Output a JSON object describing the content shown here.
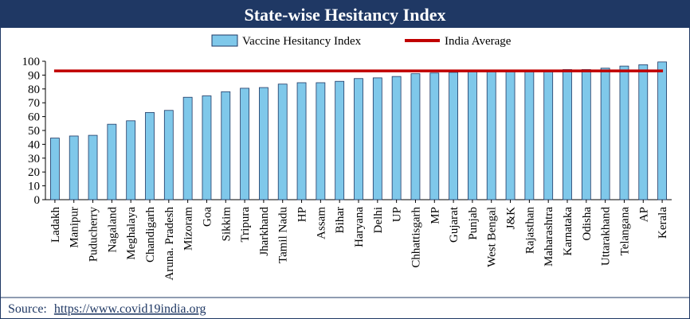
{
  "colors": {
    "bar": "#7fc8ea",
    "bar_outline": "#1f3864",
    "average_line": "#c00000",
    "title_background": "#1f3864",
    "source_text": "#1f3864"
  },
  "source": {
    "label": "Source:",
    "url": "https://www.covid19india.org"
  },
  "chart_data": {
    "type": "bar",
    "title": "State-wise Hesitancy Index",
    "xlabel": "",
    "ylabel": "",
    "ylim": [
      0,
      100
    ],
    "yticks": [
      0,
      10,
      20,
      30,
      40,
      50,
      60,
      70,
      80,
      90,
      100
    ],
    "grid": false,
    "legend_position": "top",
    "categories": [
      "Ladakh",
      "Manipur",
      "Puducherry",
      "Nagaland",
      "Meghalaya",
      "Chandigarh",
      "Aruna. Pradesh",
      "Mizoram",
      "Goa",
      "Sikkim",
      "Tripura",
      "Jharkhand",
      "Tamil Nadu",
      "HP",
      "Assam",
      "Bihar",
      "Haryana",
      "Delhi",
      "UP",
      "Chhattisgarh",
      "MP",
      "Gujarat",
      "Punjab",
      "West Bengal",
      "J&K",
      "Rajasthan",
      "Maharashtra",
      "Karnataka",
      "Odisha",
      "Uttarakhand",
      "Telangana",
      "AP",
      "Kerala"
    ],
    "series": [
      {
        "name": "Vaccine Hesitancy Index",
        "type": "bar",
        "values": [
          44.5,
          46,
          46.5,
          54.5,
          57,
          63,
          64.5,
          74,
          75,
          78,
          80.5,
          81,
          83.5,
          84.5,
          84.5,
          85.5,
          87.5,
          88,
          89,
          91,
          91.5,
          92,
          92.5,
          93,
          93,
          93,
          93.5,
          94,
          94,
          95,
          96.5,
          97.5,
          99.5
        ]
      },
      {
        "name": "India Average",
        "type": "line",
        "value": 93
      }
    ]
  }
}
